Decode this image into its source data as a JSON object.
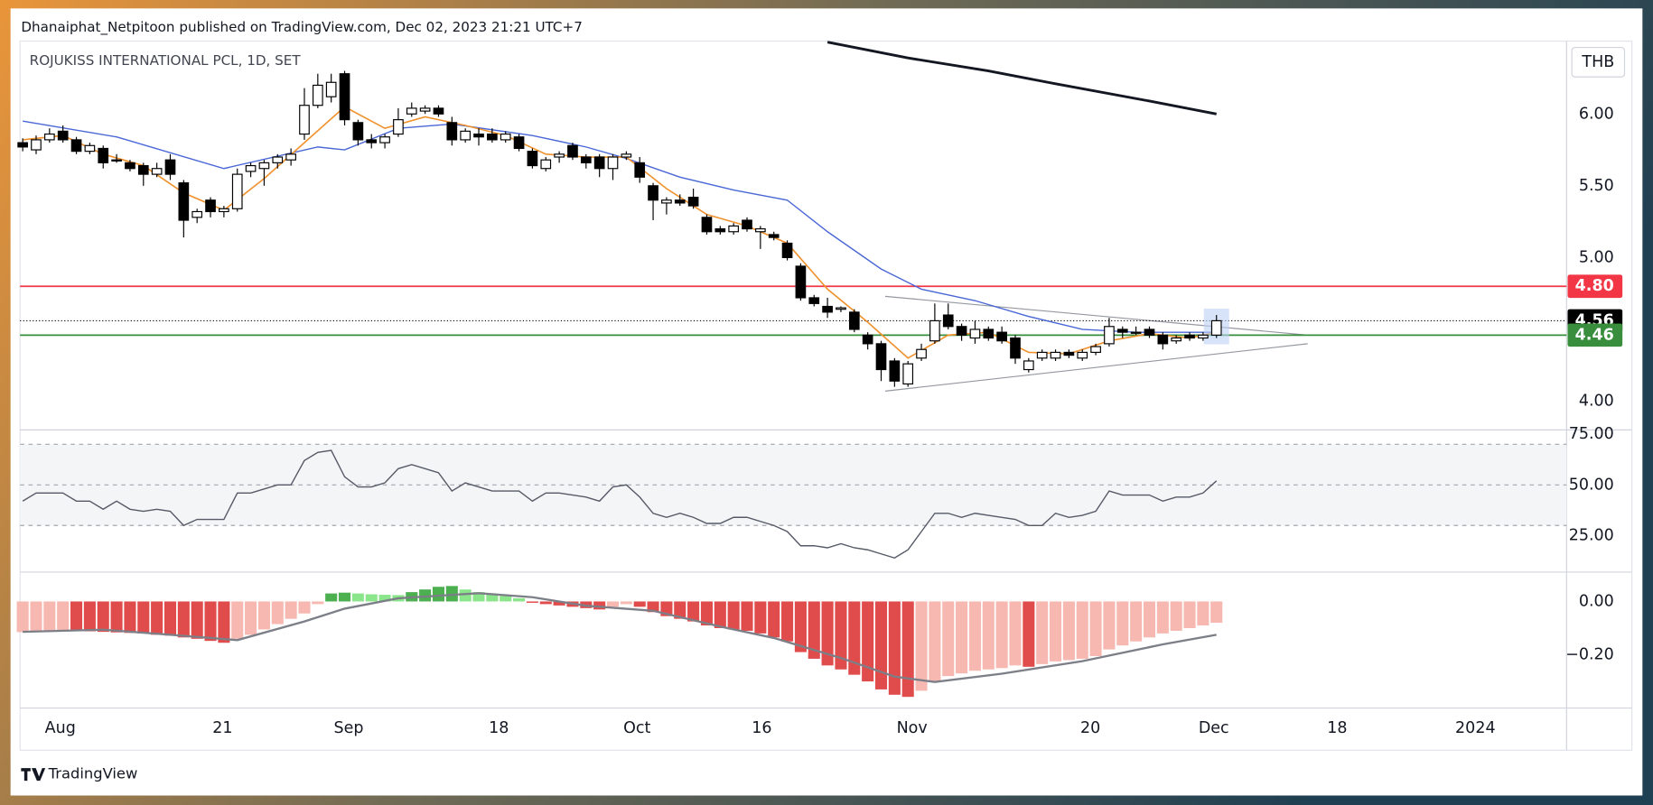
{
  "header": {
    "publisher": "Dhanaiphat_Netpitoon published on TradingView.com, Dec 02, 2023 21:21 UTC+7"
  },
  "footer": {
    "brand": "TradingView"
  },
  "chart_data": [
    {
      "type": "candlestick",
      "title": "ROJUKISS INTERNATIONAL PCL, 1D, SET",
      "currency": "THB",
      "open": [
        5.8,
        5.75,
        5.82,
        5.88,
        5.82,
        5.74,
        5.76,
        5.68,
        5.66,
        5.64,
        5.58,
        5.68,
        5.52,
        5.28,
        5.4,
        5.32,
        5.34,
        5.6,
        5.62,
        5.66,
        5.68,
        5.86,
        6.06,
        6.12,
        6.28,
        5.94,
        5.82,
        5.8,
        5.86,
        6.0,
        6.02,
        6.04,
        5.94,
        5.82,
        5.86,
        5.86,
        5.82,
        5.84,
        5.74,
        5.62,
        5.7,
        5.78,
        5.7,
        5.7,
        5.62,
        5.7,
        5.66,
        5.5,
        5.38,
        5.4,
        5.42,
        5.28,
        5.2,
        5.18,
        5.26,
        5.18,
        5.16,
        5.1,
        4.94,
        4.72,
        4.66,
        4.64,
        4.62,
        4.46,
        4.4,
        4.28,
        4.12,
        4.3,
        4.42,
        4.6,
        4.52,
        4.44,
        4.5,
        4.48,
        4.44,
        4.22,
        4.3,
        4.3,
        4.34,
        4.3,
        4.34,
        4.4,
        4.5,
        4.48,
        4.5,
        4.46,
        4.42,
        4.46,
        4.44,
        4.46
      ],
      "high": [
        5.83,
        5.85,
        5.9,
        5.92,
        5.84,
        5.8,
        5.78,
        5.72,
        5.68,
        5.66,
        5.66,
        5.72,
        5.54,
        5.34,
        5.42,
        5.36,
        5.62,
        5.66,
        5.68,
        5.72,
        5.76,
        6.18,
        6.28,
        6.28,
        6.3,
        5.96,
        5.86,
        5.86,
        6.04,
        6.08,
        6.06,
        6.06,
        5.98,
        5.9,
        5.9,
        5.9,
        5.88,
        5.86,
        5.76,
        5.7,
        5.74,
        5.8,
        5.72,
        5.72,
        5.72,
        5.74,
        5.7,
        5.52,
        5.42,
        5.44,
        5.48,
        5.3,
        5.22,
        5.24,
        5.28,
        5.22,
        5.18,
        5.12,
        4.96,
        4.74,
        4.72,
        4.66,
        4.64,
        4.48,
        4.42,
        4.3,
        4.28,
        4.4,
        4.68,
        4.68,
        4.54,
        4.56,
        4.52,
        4.52,
        4.46,
        4.3,
        4.36,
        4.36,
        4.36,
        4.36,
        4.4,
        4.58,
        4.52,
        4.52,
        4.52,
        4.48,
        4.46,
        4.48,
        4.48,
        4.6
      ],
      "low": [
        5.74,
        5.72,
        5.8,
        5.8,
        5.72,
        5.72,
        5.62,
        5.66,
        5.6,
        5.5,
        5.56,
        5.54,
        5.14,
        5.24,
        5.28,
        5.28,
        5.32,
        5.56,
        5.5,
        5.62,
        5.64,
        5.82,
        6.04,
        6.08,
        5.92,
        5.78,
        5.76,
        5.76,
        5.84,
        5.98,
        6.0,
        5.98,
        5.78,
        5.8,
        5.78,
        5.8,
        5.8,
        5.74,
        5.62,
        5.6,
        5.66,
        5.68,
        5.62,
        5.56,
        5.54,
        5.68,
        5.52,
        5.26,
        5.3,
        5.36,
        5.34,
        5.16,
        5.16,
        5.16,
        5.18,
        5.06,
        5.12,
        4.98,
        4.7,
        4.66,
        4.58,
        4.62,
        4.48,
        4.36,
        4.14,
        4.1,
        4.1,
        4.28,
        4.4,
        4.5,
        4.42,
        4.4,
        4.42,
        4.4,
        4.26,
        4.2,
        4.28,
        4.28,
        4.3,
        4.28,
        4.32,
        4.38,
        4.44,
        4.46,
        4.44,
        4.36,
        4.4,
        4.42,
        4.42,
        4.44
      ],
      "close": [
        5.77,
        5.82,
        5.86,
        5.82,
        5.74,
        5.78,
        5.66,
        5.68,
        5.62,
        5.58,
        5.62,
        5.58,
        5.26,
        5.32,
        5.32,
        5.34,
        5.58,
        5.64,
        5.66,
        5.7,
        5.72,
        6.06,
        6.2,
        6.22,
        5.96,
        5.82,
        5.8,
        5.84,
        5.96,
        6.04,
        6.04,
        6.0,
        5.82,
        5.88,
        5.84,
        5.82,
        5.86,
        5.76,
        5.64,
        5.68,
        5.72,
        5.7,
        5.66,
        5.62,
        5.7,
        5.72,
        5.56,
        5.4,
        5.4,
        5.38,
        5.36,
        5.18,
        5.18,
        5.22,
        5.2,
        5.2,
        5.14,
        5.0,
        4.72,
        4.68,
        4.62,
        4.65,
        4.5,
        4.4,
        4.22,
        4.14,
        4.26,
        4.36,
        4.56,
        4.52,
        4.46,
        4.5,
        4.44,
        4.42,
        4.3,
        4.28,
        4.34,
        4.34,
        4.32,
        4.34,
        4.38,
        4.52,
        4.48,
        4.48,
        4.46,
        4.4,
        4.44,
        4.44,
        4.46,
        4.56
      ],
      "up_color": "#ffffff",
      "down_color": "#000000",
      "overlays": [
        {
          "color": "#131722",
          "width": 2.5,
          "x": [
            60,
            66,
            72,
            77,
            84,
            89
          ],
          "values": [
            6.5,
            6.39,
            6.3,
            6.21,
            6.09,
            6.0
          ]
        },
        {
          "color": "#4a67d6",
          "width": 1.2,
          "x": [
            0,
            7,
            15,
            22,
            24,
            28,
            32,
            38,
            42,
            45,
            49,
            53,
            57,
            60,
            64,
            67,
            71,
            75,
            79,
            83,
            89
          ],
          "values": [
            5.95,
            5.84,
            5.62,
            5.77,
            5.75,
            5.9,
            5.93,
            5.85,
            5.77,
            5.69,
            5.56,
            5.47,
            5.4,
            5.18,
            4.92,
            4.78,
            4.7,
            4.59,
            4.5,
            4.48,
            4.48
          ]
        },
        {
          "color": "#f0922e",
          "width": 1.4,
          "x": [
            0,
            3,
            6,
            9,
            12,
            15,
            18,
            21,
            24,
            27,
            30,
            33,
            36,
            39,
            42,
            45,
            48,
            51,
            54,
            57,
            60,
            63,
            66,
            69,
            72,
            75,
            78,
            81,
            84,
            87,
            89
          ],
          "values": [
            5.82,
            5.85,
            5.72,
            5.64,
            5.45,
            5.33,
            5.55,
            5.8,
            6.05,
            5.9,
            5.98,
            5.92,
            5.85,
            5.72,
            5.7,
            5.7,
            5.48,
            5.3,
            5.22,
            5.1,
            4.78,
            4.55,
            4.3,
            4.46,
            4.48,
            4.34,
            4.33,
            4.42,
            4.47,
            4.44,
            4.48
          ]
        }
      ],
      "levels": [
        {
          "value": 4.8,
          "label": "4.80",
          "color": "#f23645",
          "style": "solid"
        },
        {
          "value": 4.56,
          "label": "4.56",
          "color": "#000000",
          "style": "dotted"
        },
        {
          "value": 4.46,
          "label": "4.46",
          "color": "#388e3c",
          "style": "solid"
        }
      ],
      "trendlines": [
        {
          "color": "#9598a1",
          "x": [
            64.3,
            95.8
          ],
          "values": [
            4.73,
            4.46
          ]
        },
        {
          "color": "#9598a1",
          "x": [
            64.3,
            95.8
          ],
          "values": [
            4.07,
            4.4
          ]
        }
      ],
      "xlim": [
        -0.2,
        115.1
      ],
      "xticks": [
        {
          "value": 2.8,
          "label": "Aug"
        },
        {
          "value": 14.9,
          "label": "21"
        },
        {
          "value": 24.3,
          "label": "Sep"
        },
        {
          "value": 35.5,
          "label": "18"
        },
        {
          "value": 45.8,
          "label": "Oct"
        },
        {
          "value": 55.1,
          "label": "16"
        },
        {
          "value": 66.3,
          "label": "Nov"
        },
        {
          "value": 79.6,
          "label": "20"
        },
        {
          "value": 88.8,
          "label": "Dec"
        },
        {
          "value": 98.0,
          "label": "18"
        },
        {
          "value": 108.3,
          "label": "2024"
        }
      ],
      "ylim": [
        3.8,
        6.5
      ],
      "yticks": [
        {
          "value": 4,
          "label": "4.00"
        },
        {
          "value": 5,
          "label": "5.00"
        },
        {
          "value": 5.5,
          "label": "5.50"
        },
        {
          "value": 6,
          "label": "6.00"
        }
      ]
    },
    {
      "type": "line",
      "color": "#555a66",
      "values": [
        42,
        46,
        46,
        46,
        42,
        42,
        38,
        42,
        38,
        37,
        38,
        37,
        30,
        33,
        33,
        33,
        46,
        46,
        48,
        50,
        50,
        62,
        66,
        67,
        54,
        49,
        49,
        51,
        58,
        60,
        58,
        56,
        47,
        51,
        49,
        47,
        47,
        47,
        42,
        46,
        46,
        45,
        44,
        42,
        49,
        50,
        44,
        36,
        34,
        36,
        34,
        31,
        31,
        34,
        34,
        32,
        30,
        27,
        20,
        20,
        19,
        21,
        19,
        18,
        16,
        14,
        18,
        27,
        36,
        36,
        34,
        36,
        35,
        34,
        33,
        30,
        30,
        36,
        34,
        35,
        37,
        47,
        45,
        45,
        45,
        42,
        44,
        44,
        46,
        52
      ],
      "band": [
        30,
        70
      ],
      "band_color": "#f4f5f7",
      "midline": 50,
      "ylim": [
        7,
        77.1
      ],
      "yticks": [
        {
          "value": 75,
          "label": "75.00"
        },
        {
          "value": 50,
          "label": "50.00"
        },
        {
          "value": 25,
          "label": "25.00"
        }
      ]
    },
    {
      "type": "bar",
      "values": [
        -0.115,
        -0.112,
        -0.11,
        -0.108,
        -0.11,
        -0.112,
        -0.114,
        -0.116,
        -0.118,
        -0.12,
        -0.125,
        -0.128,
        -0.135,
        -0.14,
        -0.148,
        -0.155,
        -0.14,
        -0.125,
        -0.105,
        -0.085,
        -0.065,
        -0.045,
        -0.01,
        0.03,
        0.033,
        0.03,
        0.027,
        0.025,
        0.024,
        0.035,
        0.045,
        0.055,
        0.058,
        0.045,
        0.035,
        0.028,
        0.02,
        0.012,
        -0.005,
        -0.01,
        -0.015,
        -0.02,
        -0.025,
        -0.03,
        -0.02,
        -0.01,
        -0.02,
        -0.04,
        -0.055,
        -0.065,
        -0.075,
        -0.09,
        -0.1,
        -0.105,
        -0.11,
        -0.12,
        -0.135,
        -0.15,
        -0.19,
        -0.215,
        -0.24,
        -0.255,
        -0.275,
        -0.3,
        -0.33,
        -0.35,
        -0.358,
        -0.335,
        -0.3,
        -0.28,
        -0.27,
        -0.26,
        -0.255,
        -0.25,
        -0.24,
        -0.245,
        -0.235,
        -0.225,
        -0.22,
        -0.215,
        -0.205,
        -0.18,
        -0.165,
        -0.15,
        -0.135,
        -0.12,
        -0.11,
        -0.1,
        -0.09,
        -0.08
      ],
      "colors": {
        "rising_above": "#4caf50",
        "falling_above": "#8be68b",
        "rising_below": "#f6b8b0",
        "falling_below": "#e04b4b"
      },
      "signal": {
        "color": "#7c7f87",
        "x": [
          0,
          6,
          11,
          16,
          21,
          24,
          28,
          34,
          38,
          42,
          47,
          52,
          56,
          61,
          65,
          68,
          73,
          79,
          85,
          89
        ],
        "values": [
          -0.114,
          -0.106,
          -0.125,
          -0.145,
          -0.075,
          -0.027,
          0.012,
          0.031,
          0.016,
          -0.016,
          -0.035,
          -0.094,
          -0.137,
          -0.212,
          -0.282,
          -0.302,
          -0.271,
          -0.224,
          -0.161,
          -0.125
        ]
      },
      "ylim": [
        -0.4,
        0.11
      ],
      "yticks": [
        {
          "value": 0,
          "label": "0.00"
        },
        {
          "value": -0.2,
          "label": "−0.20"
        }
      ]
    }
  ]
}
